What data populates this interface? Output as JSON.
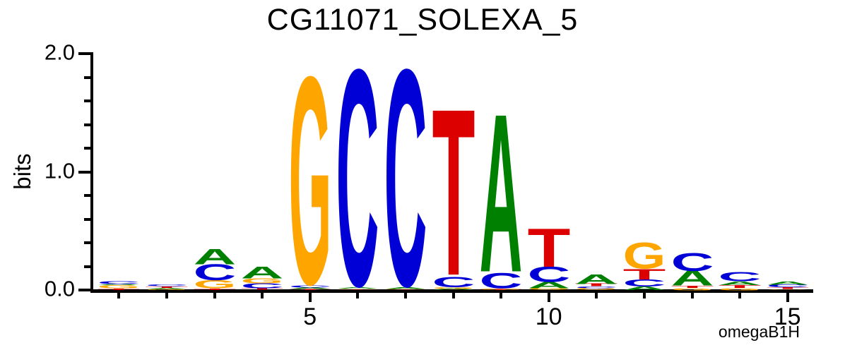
{
  "title": "CG11071_SOLEXA_5",
  "footer_label": "omegaB1H",
  "colors": {
    "A": "#008000",
    "C": "#0000D6",
    "G": "#FFA500",
    "T": "#DD0000"
  },
  "y_axis": {
    "label": "bits",
    "majors": [
      {
        "value": 2.0,
        "label": "2.0"
      },
      {
        "value": 1.0,
        "label": "1.0"
      },
      {
        "value": 0.0,
        "label": "0.0"
      }
    ],
    "minor_step": 0.2,
    "range": [
      0.0,
      2.0
    ]
  },
  "x_axis": {
    "num_positions": 15,
    "labeled_positions": [
      {
        "position": 5,
        "label": "5"
      },
      {
        "position": 10,
        "label": "10"
      },
      {
        "position": 15,
        "label": "15"
      }
    ]
  },
  "chart_data": {
    "type": "sequence_logo",
    "title": "CG11071_SOLEXA_5",
    "ylabel": "bits",
    "unit": "bits",
    "ylim": [
      0.0,
      2.0
    ],
    "x_ticks": [
      5,
      10,
      15
    ],
    "grid": false,
    "legend": false,
    "note": "stacks are listed bottom-to-top; values in bits",
    "positions": [
      {
        "pos": 1,
        "stack": [
          {
            "base": "T",
            "bits": 0.012
          },
          {
            "base": "G",
            "bits": 0.028
          },
          {
            "base": "A",
            "bits": 0.012
          },
          {
            "base": "C",
            "bits": 0.022
          }
        ]
      },
      {
        "pos": 2,
        "stack": [
          {
            "base": "G",
            "bits": 0.006
          },
          {
            "base": "A",
            "bits": 0.012
          },
          {
            "base": "T",
            "bits": 0.012
          },
          {
            "base": "C",
            "bits": 0.015
          }
        ]
      },
      {
        "pos": 3,
        "stack": [
          {
            "base": "T",
            "bits": 0.012
          },
          {
            "base": "G",
            "bits": 0.07
          },
          {
            "base": "C",
            "bits": 0.133
          },
          {
            "base": "A",
            "bits": 0.13
          }
        ]
      },
      {
        "pos": 4,
        "stack": [
          {
            "base": "T",
            "bits": 0.015
          },
          {
            "base": "C",
            "bits": 0.04
          },
          {
            "base": "G",
            "bits": 0.04
          },
          {
            "base": "A",
            "bits": 0.1
          }
        ]
      },
      {
        "pos": 5,
        "stack": [
          {
            "base": "T",
            "bits": 0.006
          },
          {
            "base": "A",
            "bits": 0.015
          },
          {
            "base": "C",
            "bits": 0.02
          },
          {
            "base": "G",
            "bits": 1.745
          }
        ]
      },
      {
        "pos": 6,
        "stack": [
          {
            "base": "T",
            "bits": 0.005
          },
          {
            "base": "G",
            "bits": 0.005
          },
          {
            "base": "A",
            "bits": 0.013
          },
          {
            "base": "C",
            "bits": 1.82
          }
        ]
      },
      {
        "pos": 7,
        "stack": [
          {
            "base": "T",
            "bits": 0.005
          },
          {
            "base": "G",
            "bits": 0.005
          },
          {
            "base": "A",
            "bits": 0.015
          },
          {
            "base": "C",
            "bits": 1.82
          }
        ]
      },
      {
        "pos": 8,
        "stack": [
          {
            "base": "A",
            "bits": 0.01
          },
          {
            "base": "G",
            "bits": 0.014
          },
          {
            "base": "C",
            "bits": 0.09
          },
          {
            "base": "T",
            "bits": 1.4
          }
        ]
      },
      {
        "pos": 9,
        "stack": [
          {
            "base": "T",
            "bits": 0.006
          },
          {
            "base": "G",
            "bits": 0.008
          },
          {
            "base": "C",
            "bits": 0.13
          },
          {
            "base": "A",
            "bits": 1.33
          }
        ]
      },
      {
        "pos": 10,
        "stack": [
          {
            "base": "G",
            "bits": 0.015
          },
          {
            "base": "A",
            "bits": 0.052
          },
          {
            "base": "C",
            "bits": 0.13
          },
          {
            "base": "T",
            "bits": 0.325
          }
        ]
      },
      {
        "pos": 11,
        "stack": [
          {
            "base": "G",
            "bits": 0.016
          },
          {
            "base": "C",
            "bits": 0.015
          },
          {
            "base": "T",
            "bits": 0.022
          },
          {
            "base": "A",
            "bits": 0.08
          }
        ]
      },
      {
        "pos": 12,
        "stack": [
          {
            "base": "A",
            "bits": 0.03
          },
          {
            "base": "C",
            "bits": 0.06
          },
          {
            "base": "T",
            "bits": 0.09
          },
          {
            "base": "G",
            "bits": 0.22
          }
        ]
      },
      {
        "pos": 13,
        "stack": [
          {
            "base": "G",
            "bits": 0.02
          },
          {
            "base": "T",
            "bits": 0.018
          },
          {
            "base": "A",
            "bits": 0.125
          },
          {
            "base": "C",
            "bits": 0.15
          }
        ]
      },
      {
        "pos": 14,
        "stack": [
          {
            "base": "G",
            "bits": 0.02
          },
          {
            "base": "T",
            "bits": 0.024
          },
          {
            "base": "A",
            "bits": 0.03
          },
          {
            "base": "C",
            "bits": 0.075
          }
        ]
      },
      {
        "pos": 15,
        "stack": [
          {
            "base": "G",
            "bits": 0.005
          },
          {
            "base": "T",
            "bits": 0.016
          },
          {
            "base": "C",
            "bits": 0.024
          },
          {
            "base": "A",
            "bits": 0.026
          }
        ]
      }
    ]
  }
}
